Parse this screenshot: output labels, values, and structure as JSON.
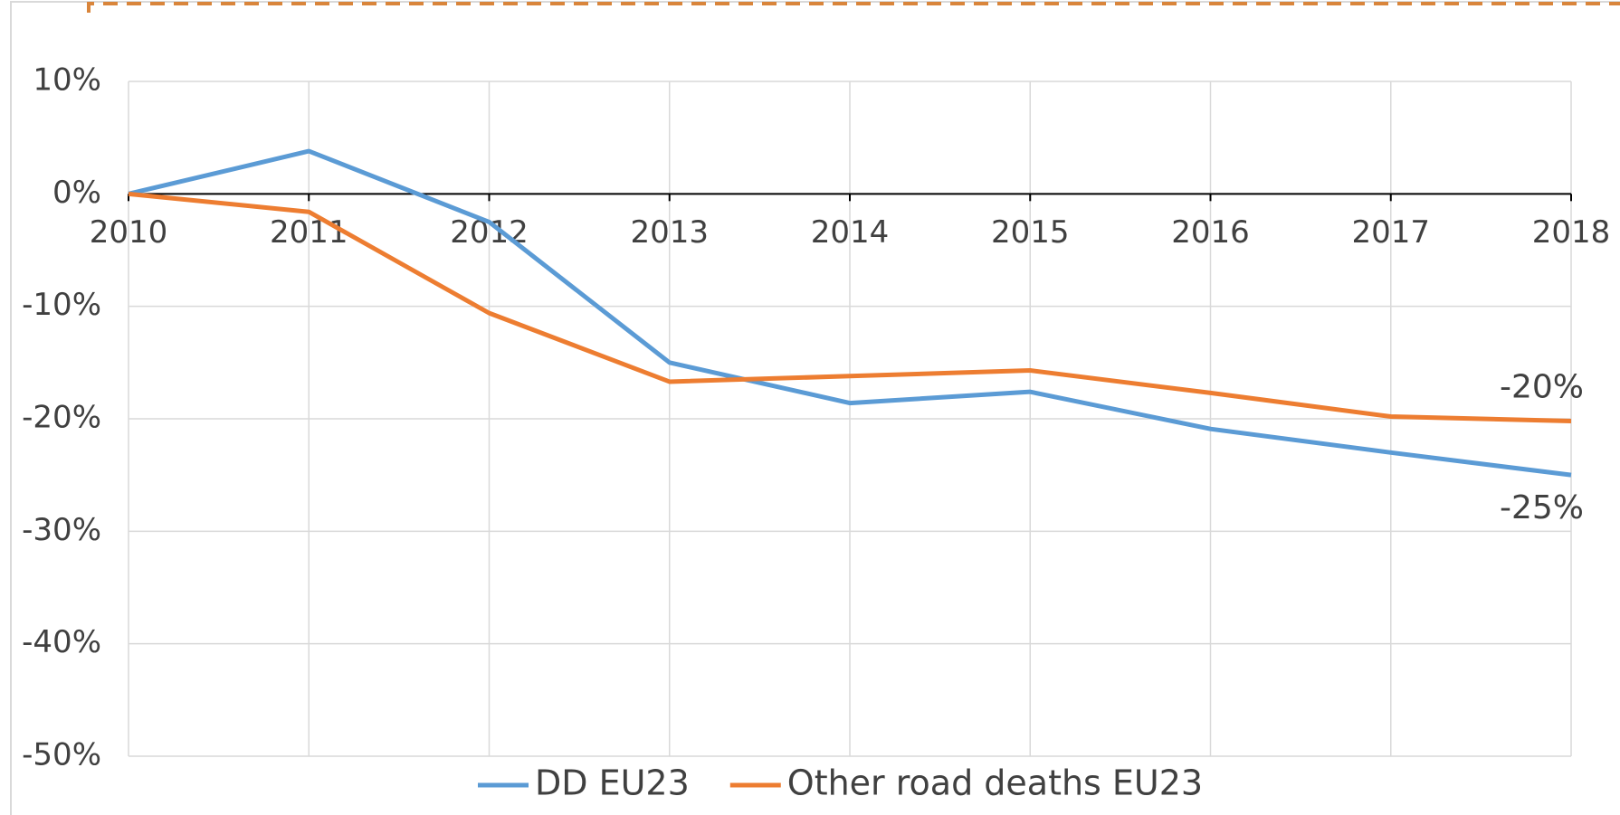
{
  "chart_data": {
    "type": "line",
    "categories": [
      "2010",
      "2011",
      "2012",
      "2013",
      "2014",
      "2015",
      "2016",
      "2017",
      "2018"
    ],
    "series": [
      {
        "name": "DD EU23",
        "color": "#5b9bd5",
        "label_color": "#4472c4",
        "values": [
          0,
          3.8,
          -2.5,
          -15,
          -18.6,
          -17.6,
          -20.9,
          -23,
          -25
        ],
        "value_labels": [
          null,
          null,
          null,
          null,
          null,
          null,
          null,
          null,
          "-25%"
        ]
      },
      {
        "name": "Other road deaths EU23",
        "color": "#ed7d31",
        "label_color": "#c55a11",
        "values": [
          0,
          -1.6,
          -10.6,
          -16.7,
          -16.2,
          -15.7,
          -17.7,
          -19.8,
          -20.2
        ],
        "value_labels": [
          null,
          null,
          null,
          null,
          null,
          null,
          null,
          null,
          "-20%"
        ]
      }
    ],
    "ylim": [
      -50,
      10
    ],
    "yticks": [
      {
        "value": -50,
        "label": "-50%"
      },
      {
        "value": -40,
        "label": "-40%"
      },
      {
        "value": -30,
        "label": "-30%"
      },
      {
        "value": -20,
        "label": "-20%"
      },
      {
        "value": -10,
        "label": "-10%"
      },
      {
        "value": 0,
        "label": "0%"
      },
      {
        "value": 10,
        "label": "10%"
      }
    ],
    "grid": true,
    "legend": "bottom"
  }
}
